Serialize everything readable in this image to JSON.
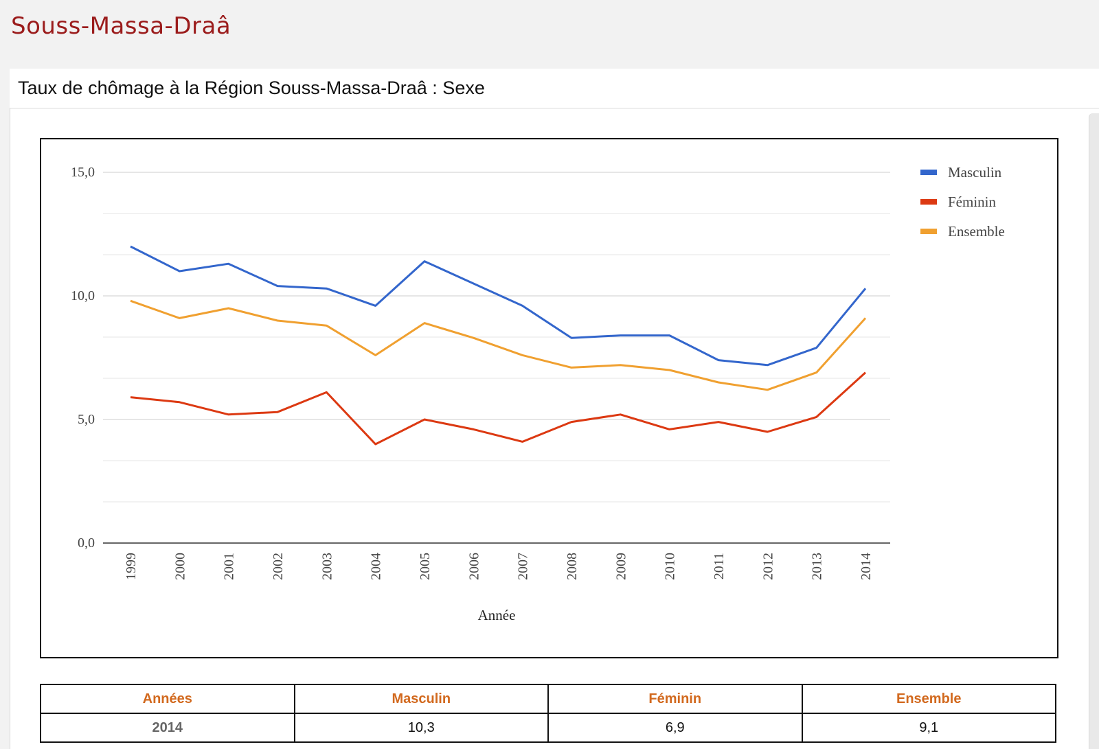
{
  "page": {
    "region_title": "Souss-Massa-Draâ",
    "panel_title": "Taux de chômage à la Région Souss-Massa-Draâ : Sexe"
  },
  "chart_data": {
    "type": "line",
    "title": "",
    "xlabel": "Année",
    "ylabel": "",
    "x": [
      "1999",
      "2000",
      "2001",
      "2002",
      "2003",
      "2004",
      "2005",
      "2006",
      "2007",
      "2008",
      "2009",
      "2010",
      "2011",
      "2012",
      "2013",
      "2014"
    ],
    "ylim": [
      0,
      15
    ],
    "yticks": [
      "0,0",
      "5,0",
      "10,0",
      "15,0"
    ],
    "grid": true,
    "legend": "right",
    "series": [
      {
        "name": "Masculin",
        "color": "#3366cc",
        "values": [
          12.0,
          11.0,
          11.3,
          10.4,
          10.3,
          9.6,
          11.4,
          10.5,
          9.6,
          8.3,
          8.4,
          8.4,
          7.4,
          7.2,
          7.9,
          10.3
        ]
      },
      {
        "name": "Féminin",
        "color": "#dc3912",
        "values": [
          5.9,
          5.7,
          5.2,
          5.3,
          6.1,
          4.0,
          5.0,
          4.6,
          4.1,
          4.9,
          5.2,
          4.6,
          4.9,
          4.5,
          5.1,
          6.9
        ]
      },
      {
        "name": "Ensemble",
        "color": "#f0a030",
        "values": [
          9.8,
          9.1,
          9.5,
          9.0,
          8.8,
          7.6,
          8.9,
          8.3,
          7.6,
          7.1,
          7.2,
          7.0,
          6.5,
          6.2,
          6.9,
          9.1
        ]
      }
    ]
  },
  "table": {
    "headers": [
      "Années",
      "Masculin",
      "Féminin",
      "Ensemble"
    ],
    "rows": [
      [
        "2014",
        "10,3",
        "6,9",
        "9,1"
      ]
    ]
  }
}
